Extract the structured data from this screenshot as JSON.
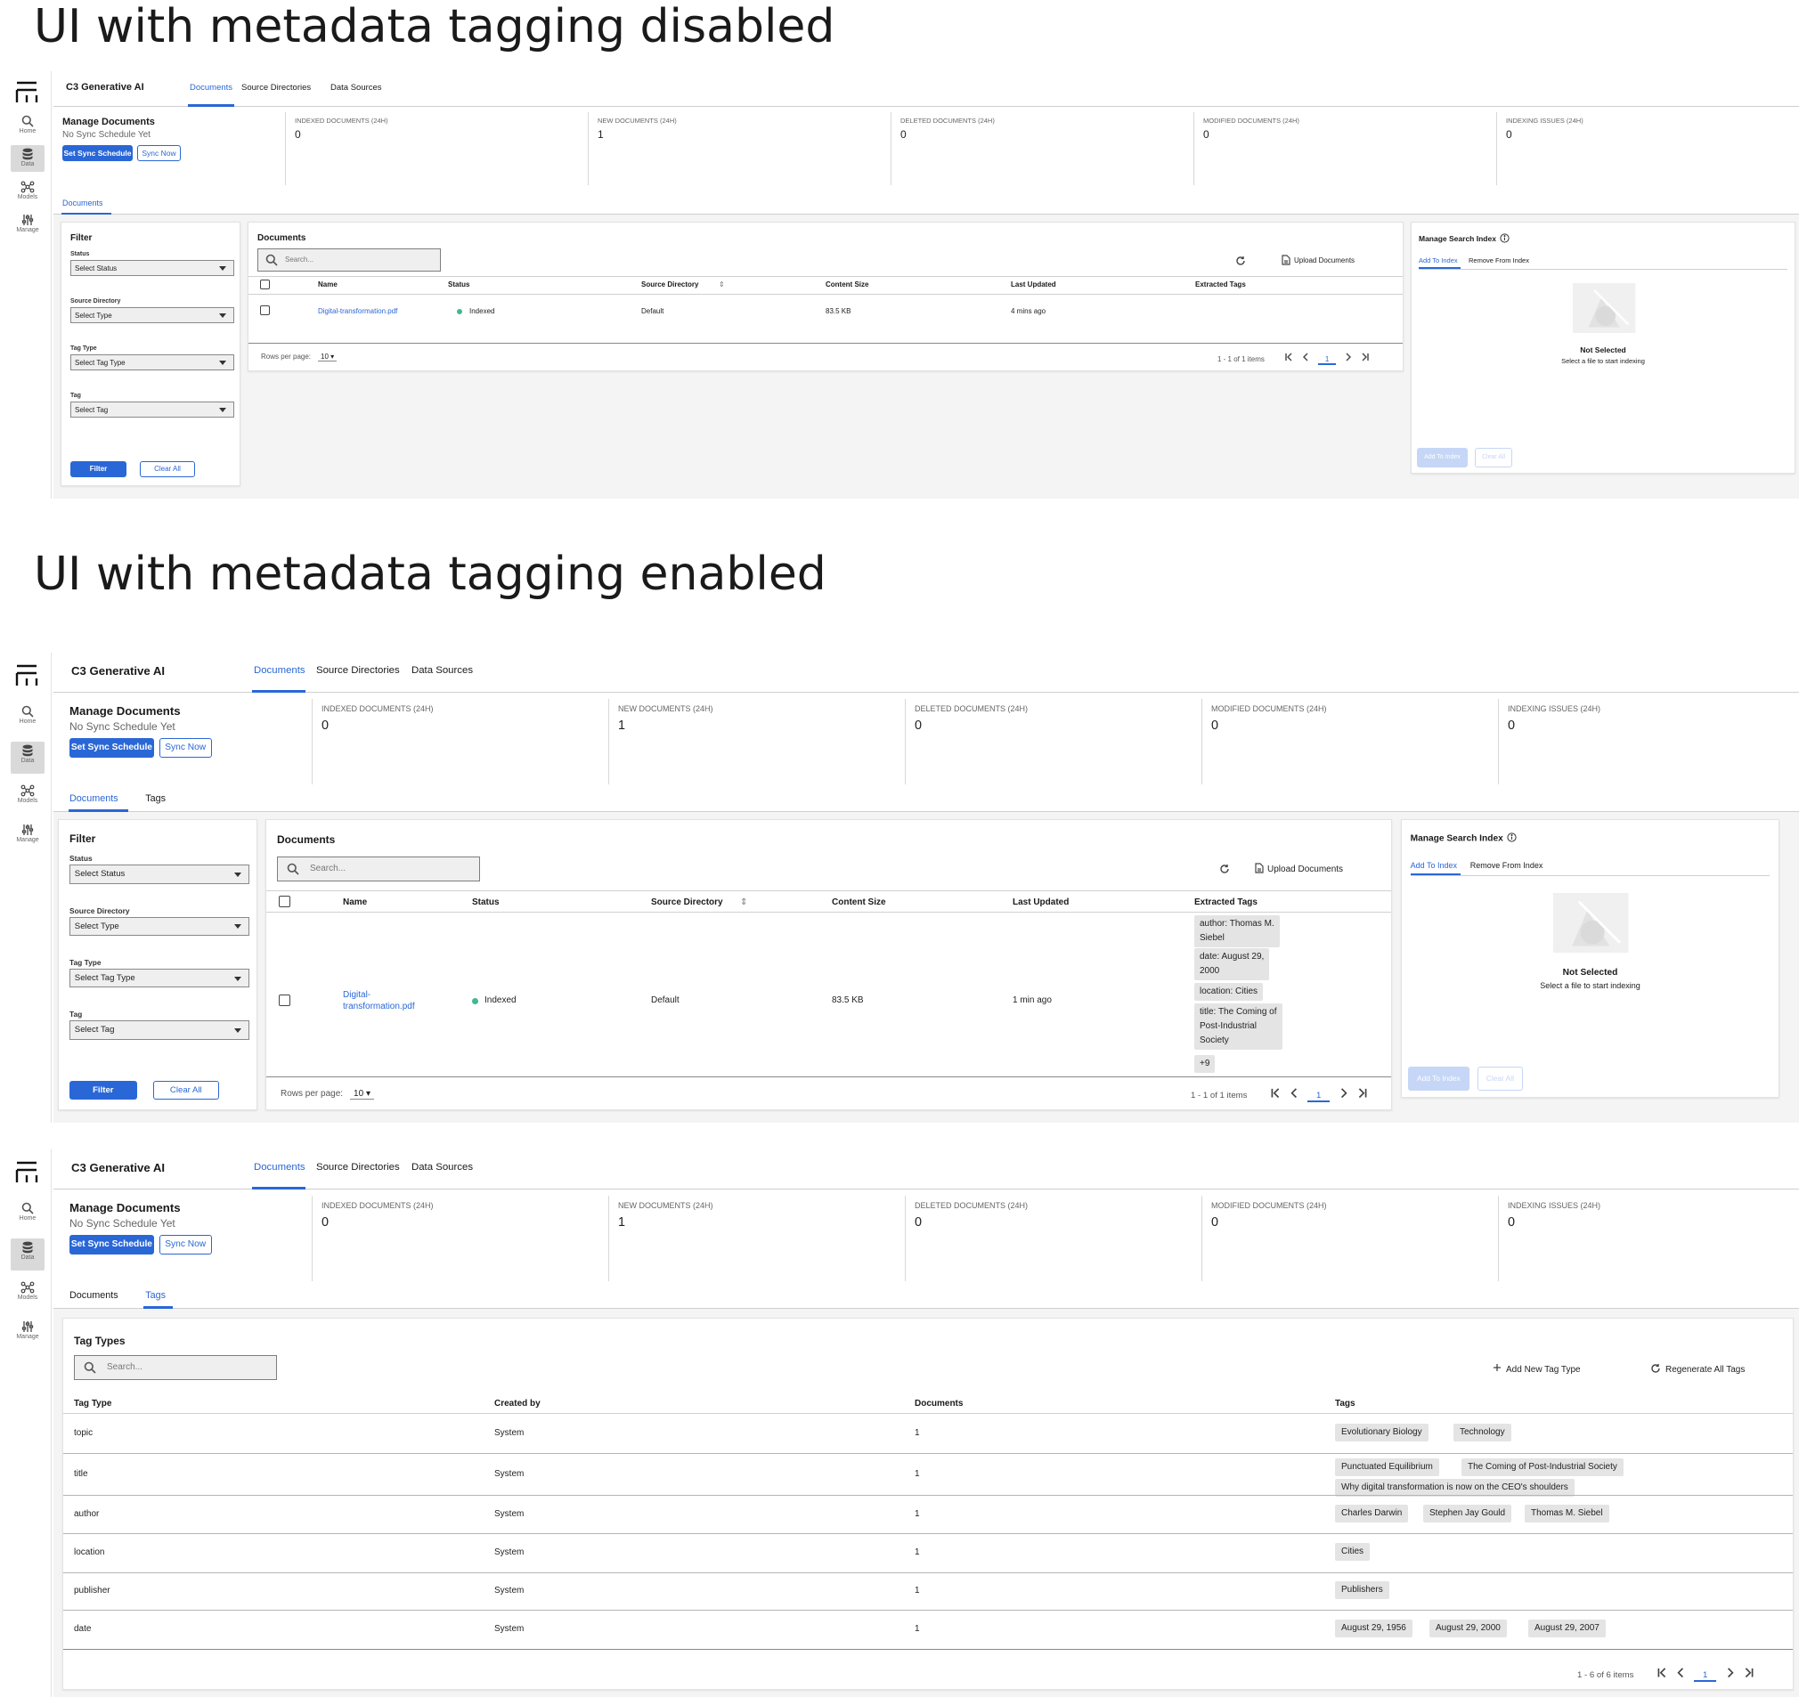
{
  "headings": {
    "disabled": "UI with metadata tagging disabled",
    "enabled": "UI with metadata tagging enabled"
  },
  "app": {
    "name": "C3 Generative AI",
    "tabs": [
      "Documents",
      "Source Directories",
      "Data Sources"
    ]
  },
  "sidebar": {
    "items": [
      "Home",
      "Data",
      "Models",
      "Manage"
    ]
  },
  "manage": {
    "title": "Manage Documents",
    "subtitle": "No Sync Schedule Yet",
    "set_sync": "Set Sync Schedule",
    "sync_now": "Sync Now"
  },
  "stats": [
    {
      "label": "INDEXED DOCUMENTS (24H)",
      "value": "0"
    },
    {
      "label": "NEW DOCUMENTS (24H)",
      "value": "1"
    },
    {
      "label": "DELETED DOCUMENTS (24H)",
      "value": "0"
    },
    {
      "label": "MODIFIED DOCUMENTS (24H)",
      "value": "0"
    },
    {
      "label": "INDEXING ISSUES (24H)",
      "value": "0"
    }
  ],
  "subtabs": {
    "documents": "Documents",
    "tags": "Tags"
  },
  "filter": {
    "title": "Filter",
    "status": "Status",
    "status_ph": "Select Status",
    "source": "Source Directory",
    "source_ph": "Select Type",
    "tag_type": "Tag Type",
    "tag_type_ph": "Select Tag Type",
    "tag": "Tag",
    "tag_ph": "Select Tag",
    "filter_btn": "Filter",
    "clear_btn": "Clear All"
  },
  "documents": {
    "title": "Documents",
    "search_ph": "Search...",
    "upload": "Upload Documents",
    "columns": [
      "Name",
      "Status",
      "Source Directory",
      "Content Size",
      "Last Updated",
      "Extracted Tags"
    ],
    "row": {
      "name": "Digital-transformation.pdf",
      "name_wrap": [
        "Digital-",
        "transformation.pdf"
      ],
      "status": "Indexed",
      "source": "Default",
      "size": "83.5 KB",
      "updated_disabled": "4 mins ago",
      "updated_enabled": "1 min ago"
    },
    "extracted_tags": [
      [
        "author: Thomas M.",
        "Siebel"
      ],
      [
        "date: August 29,",
        "2000"
      ],
      [
        "location: Cities"
      ],
      [
        "title: The Coming of",
        "Post-Industrial",
        "Society"
      ],
      [
        "+9"
      ]
    ],
    "rows_per_page": "Rows per page:",
    "rows_value": "10",
    "range": "1 - 1 of 1 items",
    "page": "1"
  },
  "search_index": {
    "title": "Manage Search Index",
    "tab_add": "Add To Index",
    "tab_remove": "Remove From Index",
    "empty_title": "Not Selected",
    "empty_sub": "Select a file to start indexing",
    "add_btn": "Add To Index",
    "clear_btn": "Clear All"
  },
  "tag_types": {
    "title": "Tag Types",
    "search_ph": "Search...",
    "add": "Add New Tag Type",
    "regenerate": "Regenerate All Tags",
    "columns": [
      "Tag Type",
      "Created by",
      "Documents",
      "Tags"
    ],
    "rows": [
      {
        "type": "topic",
        "by": "System",
        "docs": "1",
        "tags": [
          [
            "Evolutionary Biology",
            "Technology"
          ]
        ]
      },
      {
        "type": "title",
        "by": "System",
        "docs": "1",
        "tags": [
          [
            "Punctuated Equilibrium",
            "The Coming of Post-Industrial Society"
          ],
          [
            "Why digital transformation is now on the CEO's shoulders"
          ]
        ]
      },
      {
        "type": "author",
        "by": "System",
        "docs": "1",
        "tags": [
          [
            "Charles Darwin",
            "Stephen Jay Gould",
            "Thomas M. Siebel"
          ]
        ]
      },
      {
        "type": "location",
        "by": "System",
        "docs": "1",
        "tags": [
          [
            "Cities"
          ]
        ]
      },
      {
        "type": "publisher",
        "by": "System",
        "docs": "1",
        "tags": [
          [
            "Publishers"
          ]
        ]
      },
      {
        "type": "date",
        "by": "System",
        "docs": "1",
        "tags": [
          [
            "August 29, 1956",
            "August 29, 2000",
            "August 29, 2007"
          ]
        ]
      }
    ],
    "range": "1 - 6 of 6 items",
    "page": "1"
  },
  "colors": {
    "accent": "#2a67d6",
    "indexed": "#3fb894"
  },
  "icons": [
    "search-icon",
    "database-icon",
    "models-icon",
    "sliders-icon",
    "refresh-icon",
    "file-icon",
    "info-icon",
    "plus-icon",
    "first-page-icon",
    "prev-page-icon",
    "next-page-icon",
    "last-page-icon"
  ]
}
